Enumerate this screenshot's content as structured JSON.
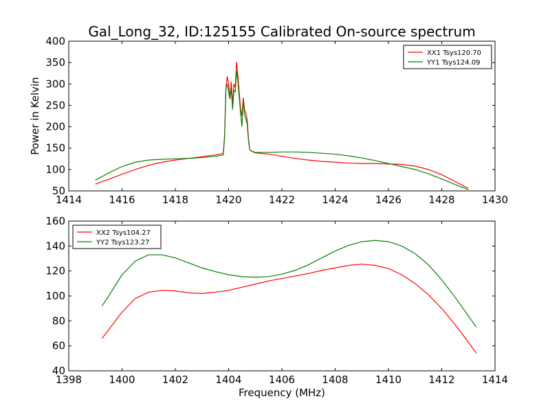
{
  "figure_title": "Gal_Long_32, ID:125155 Calibrated On-source spectrum",
  "colors": {
    "red": "#ff0000",
    "green": "#008000"
  },
  "chart_data": [
    {
      "type": "line",
      "title": "Gal_Long_32, ID:125155 Calibrated On-source spectrum",
      "xlabel": "",
      "ylabel": "Power in Kelvin",
      "xlim": [
        1414,
        1430
      ],
      "ylim": [
        50,
        400
      ],
      "xticks": [
        1414,
        1416,
        1418,
        1420,
        1422,
        1424,
        1426,
        1428,
        1430
      ],
      "yticks": [
        50,
        100,
        150,
        200,
        250,
        300,
        350,
        400
      ],
      "legend_position": "top-right",
      "series": [
        {
          "name": "XX1 Tsys120.70",
          "color": "#ff0000",
          "points": [
            [
              1415.0,
              66
            ],
            [
              1415.5,
              77
            ],
            [
              1416.0,
              89
            ],
            [
              1416.5,
              100
            ],
            [
              1417.0,
              110
            ],
            [
              1417.5,
              117
            ],
            [
              1418.0,
              122
            ],
            [
              1418.5,
              126
            ],
            [
              1419.0,
              130
            ],
            [
              1419.5,
              134
            ],
            [
              1419.8,
              138
            ],
            [
              1419.85,
              180
            ],
            [
              1419.9,
              290
            ],
            [
              1419.95,
              318
            ],
            [
              1420.0,
              300
            ],
            [
              1420.05,
              265
            ],
            [
              1420.1,
              305
            ],
            [
              1420.15,
              252
            ],
            [
              1420.2,
              300
            ],
            [
              1420.25,
              292
            ],
            [
              1420.3,
              352
            ],
            [
              1420.35,
              318
            ],
            [
              1420.4,
              280
            ],
            [
              1420.45,
              242
            ],
            [
              1420.5,
              225
            ],
            [
              1420.55,
              268
            ],
            [
              1420.6,
              240
            ],
            [
              1420.65,
              232
            ],
            [
              1420.7,
              215
            ],
            [
              1420.75,
              170
            ],
            [
              1420.8,
              145
            ],
            [
              1421.0,
              139
            ],
            [
              1421.5,
              136
            ],
            [
              1422.0,
              131
            ],
            [
              1422.5,
              126
            ],
            [
              1423.0,
              122
            ],
            [
              1423.5,
              119
            ],
            [
              1424.0,
              117
            ],
            [
              1424.5,
              115
            ],
            [
              1425.0,
              114
            ],
            [
              1425.5,
              114
            ],
            [
              1426.0,
              113
            ],
            [
              1426.5,
              112
            ],
            [
              1427.0,
              108
            ],
            [
              1427.5,
              100
            ],
            [
              1428.0,
              88
            ],
            [
              1428.5,
              72
            ],
            [
              1429.0,
              56
            ]
          ]
        },
        {
          "name": "YY1 Tsys124.09",
          "color": "#008000",
          "points": [
            [
              1415.0,
              75
            ],
            [
              1415.5,
              92
            ],
            [
              1416.0,
              107
            ],
            [
              1416.5,
              117
            ],
            [
              1417.0,
              122
            ],
            [
              1417.5,
              124
            ],
            [
              1418.0,
              125
            ],
            [
              1418.5,
              126
            ],
            [
              1419.0,
              128
            ],
            [
              1419.5,
              131
            ],
            [
              1419.8,
              134
            ],
            [
              1419.85,
              175
            ],
            [
              1419.9,
              290
            ],
            [
              1419.95,
              300
            ],
            [
              1420.0,
              282
            ],
            [
              1420.05,
              265
            ],
            [
              1420.1,
              290
            ],
            [
              1420.15,
              240
            ],
            [
              1420.2,
              285
            ],
            [
              1420.25,
              282
            ],
            [
              1420.3,
              330
            ],
            [
              1420.35,
              305
            ],
            [
              1420.4,
              268
            ],
            [
              1420.45,
              232
            ],
            [
              1420.5,
              200
            ],
            [
              1420.55,
              262
            ],
            [
              1420.6,
              228
            ],
            [
              1420.65,
              218
            ],
            [
              1420.7,
              205
            ],
            [
              1420.75,
              165
            ],
            [
              1420.8,
              145
            ],
            [
              1421.0,
              140
            ],
            [
              1421.5,
              140
            ],
            [
              1422.0,
              141
            ],
            [
              1422.5,
              141
            ],
            [
              1423.0,
              140
            ],
            [
              1423.5,
              138
            ],
            [
              1424.0,
              136
            ],
            [
              1424.5,
              132
            ],
            [
              1425.0,
              127
            ],
            [
              1425.5,
              121
            ],
            [
              1426.0,
              114
            ],
            [
              1426.5,
              107
            ],
            [
              1427.0,
              100
            ],
            [
              1427.5,
              90
            ],
            [
              1428.0,
              78
            ],
            [
              1428.5,
              65
            ],
            [
              1429.0,
              53
            ]
          ]
        }
      ]
    },
    {
      "type": "line",
      "title": "",
      "xlabel": "Frequency (MHz)",
      "ylabel": "",
      "xlim": [
        1398,
        1414
      ],
      "ylim": [
        40,
        160
      ],
      "xticks": [
        1398,
        1400,
        1402,
        1404,
        1406,
        1408,
        1410,
        1412,
        1414
      ],
      "yticks": [
        40,
        60,
        80,
        100,
        120,
        140,
        160
      ],
      "legend_position": "top-left",
      "series": [
        {
          "name": "XX2 Tsys104.27",
          "color": "#ff0000",
          "points": [
            [
              1399.25,
              66
            ],
            [
              1399.5,
              73
            ],
            [
              1400.0,
              87
            ],
            [
              1400.5,
              98
            ],
            [
              1401.0,
              103
            ],
            [
              1401.5,
              104.5
            ],
            [
              1402.0,
              104
            ],
            [
              1402.5,
              102.5
            ],
            [
              1403.0,
              102
            ],
            [
              1403.5,
              103
            ],
            [
              1404.0,
              104.5
            ],
            [
              1404.5,
              107
            ],
            [
              1405.0,
              109.5
            ],
            [
              1405.5,
              112
            ],
            [
              1406.0,
              114
            ],
            [
              1406.5,
              116
            ],
            [
              1407.0,
              118
            ],
            [
              1407.5,
              120.5
            ],
            [
              1408.0,
              122.5
            ],
            [
              1408.5,
              124.5
            ],
            [
              1409.0,
              125.5
            ],
            [
              1409.5,
              124.5
            ],
            [
              1410.0,
              122
            ],
            [
              1410.5,
              117
            ],
            [
              1411.0,
              110
            ],
            [
              1411.5,
              101
            ],
            [
              1412.0,
              90
            ],
            [
              1412.5,
              77
            ],
            [
              1413.0,
              63
            ],
            [
              1413.3,
              54
            ]
          ]
        },
        {
          "name": "YY2 Tsys123.27",
          "color": "#008000",
          "points": [
            [
              1399.25,
              92
            ],
            [
              1399.5,
              100
            ],
            [
              1400.0,
              117
            ],
            [
              1400.5,
              128
            ],
            [
              1401.0,
              133
            ],
            [
              1401.5,
              133
            ],
            [
              1402.0,
              130.5
            ],
            [
              1402.5,
              126.5
            ],
            [
              1403.0,
              122.5
            ],
            [
              1403.5,
              119.5
            ],
            [
              1404.0,
              117
            ],
            [
              1404.5,
              115.5
            ],
            [
              1405.0,
              115
            ],
            [
              1405.5,
              115.5
            ],
            [
              1406.0,
              117.5
            ],
            [
              1406.5,
              120.5
            ],
            [
              1407.0,
              125
            ],
            [
              1407.5,
              130.5
            ],
            [
              1408.0,
              136
            ],
            [
              1408.5,
              140.5
            ],
            [
              1409.0,
              143.5
            ],
            [
              1409.5,
              144.5
            ],
            [
              1410.0,
              143.5
            ],
            [
              1410.5,
              140
            ],
            [
              1411.0,
              134
            ],
            [
              1411.5,
              125
            ],
            [
              1412.0,
              113
            ],
            [
              1412.5,
              99
            ],
            [
              1413.0,
              84
            ],
            [
              1413.3,
              75
            ]
          ]
        }
      ]
    }
  ]
}
